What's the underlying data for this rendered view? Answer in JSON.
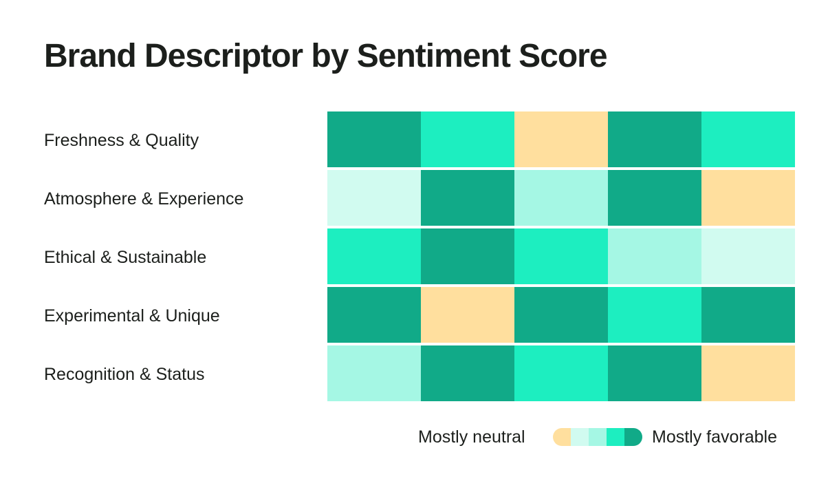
{
  "chart_data": {
    "type": "heatmap",
    "title": "Brand Descriptor by Sentiment Score",
    "rows": [
      "Freshness & Quality",
      "Atmosphere & Experience",
      "Ethical & Sustainable",
      "Experimental & Unique",
      "Recognition & Status"
    ],
    "values": [
      [
        5,
        4,
        1,
        5,
        4
      ],
      [
        2,
        5,
        3,
        5,
        1
      ],
      [
        4,
        5,
        4,
        3,
        2
      ],
      [
        5,
        1,
        5,
        4,
        5
      ],
      [
        3,
        5,
        4,
        5,
        1
      ]
    ],
    "scale": {
      "min": 1,
      "max": 5,
      "colors": [
        "#FFDF9E",
        "#D1FBF0",
        "#A5F7E4",
        "#1DEEC0",
        "#11AA88"
      ]
    },
    "legend": {
      "low_label": "Mostly neutral",
      "high_label": "Mostly favorable",
      "placement": "bottom-right"
    }
  }
}
